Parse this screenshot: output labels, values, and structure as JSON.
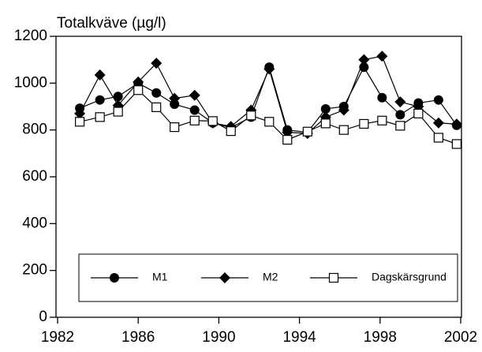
{
  "chart_data": {
    "type": "line",
    "title": "Totalkväve (µg/l)",
    "x": [
      1983.1,
      1984.1,
      1985.0,
      1986.0,
      1986.9,
      1987.8,
      1988.8,
      1989.7,
      1990.6,
      1991.6,
      1992.5,
      1993.4,
      1994.4,
      1995.3,
      1996.2,
      1997.2,
      1998.1,
      1999.0,
      1999.9,
      2000.9,
      2001.8
    ],
    "series": [
      {
        "name": "M1",
        "color": "#000000",
        "marker": "circle",
        "values": [
          893,
          928,
          943,
          1000,
          958,
          910,
          885,
          830,
          810,
          855,
          1068,
          800,
          790,
          890,
          900,
          1068,
          938,
          865,
          915,
          928,
          820
        ]
      },
      {
        "name": "M2",
        "color": "#000000",
        "marker": "diamond",
        "values": [
          870,
          1035,
          905,
          1005,
          1085,
          935,
          948,
          830,
          815,
          885,
          1060,
          790,
          785,
          855,
          885,
          1100,
          1115,
          920,
          900,
          830,
          825
        ]
      },
      {
        "name": "Dagskärsgrund",
        "color": "#000000",
        "marker": "square",
        "values": [
          835,
          855,
          878,
          970,
          897,
          812,
          840,
          838,
          795,
          862,
          835,
          758,
          793,
          828,
          800,
          826,
          840,
          818,
          870,
          767,
          740
        ]
      }
    ],
    "xlim": [
      1982,
      2002
    ],
    "xticks": [
      1982,
      1986,
      1990,
      1994,
      1998,
      2002
    ],
    "ylim": [
      0,
      1200
    ],
    "yticks": [
      0,
      200,
      400,
      600,
      800,
      1000,
      1200
    ],
    "legend": "bottom"
  }
}
